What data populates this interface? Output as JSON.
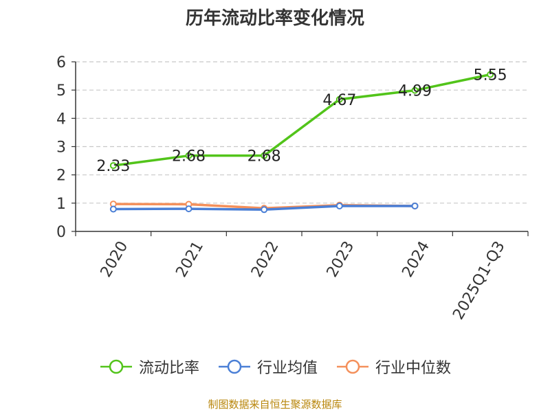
{
  "chart_data": {
    "type": "line",
    "title": "历年流动比率变化情况",
    "categories": [
      "2020",
      "2021",
      "2022",
      "2023",
      "2024",
      "2025Q1-Q3"
    ],
    "ylim": [
      0,
      6
    ],
    "yticks": [
      0,
      1,
      2,
      3,
      4,
      5,
      6
    ],
    "grid": true,
    "legend_position": "bottom",
    "series": [
      {
        "name": "流动比率",
        "color": "#52c41a",
        "values": [
          2.33,
          2.68,
          2.68,
          4.67,
          4.99,
          5.55
        ],
        "labels": [
          "2.33",
          "2.68",
          "2.68",
          "4.67",
          "4.99",
          "5.55"
        ]
      },
      {
        "name": "行业均值",
        "color": "#4a7fd6",
        "values": [
          0.79,
          0.8,
          0.77,
          0.9,
          0.9,
          null
        ]
      },
      {
        "name": "行业中位数",
        "color": "#f4905b",
        "values": [
          0.97,
          0.96,
          0.82,
          0.93,
          0.9,
          null
        ]
      }
    ]
  },
  "footer": {
    "source": "制图数据来自恒生聚源数据库"
  }
}
